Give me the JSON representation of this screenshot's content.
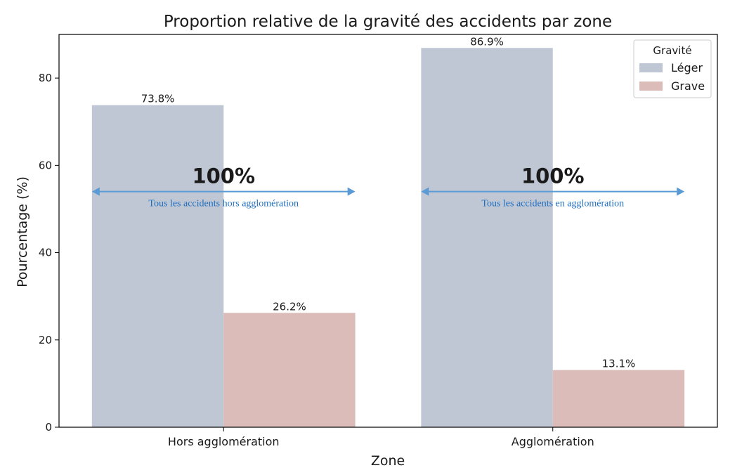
{
  "chart_data": {
    "type": "bar",
    "title": "Proportion relative de la gravité des accidents par zone",
    "xlabel": "Zone",
    "ylabel": "Pourcentage (%)",
    "categories": [
      "Hors agglomération",
      "Agglomération"
    ],
    "ylim": [
      0,
      90
    ],
    "yticks": [
      0,
      20,
      40,
      60,
      80
    ],
    "grid": false,
    "legend": {
      "title": "Gravité",
      "placement": "top-right"
    },
    "series": [
      {
        "name": "Léger",
        "values": [
          73.8,
          86.9
        ],
        "labels": [
          "73.8%",
          "86.9%"
        ],
        "color": "#bfc6d4"
      },
      {
        "name": "Grave",
        "values": [
          26.2,
          13.1
        ],
        "labels": [
          "26.2%",
          "13.1%"
        ],
        "color": "#dbbcb9"
      }
    ],
    "annotations": [
      {
        "big": "100%",
        "note": "Tous les accidents hors agglomération",
        "y": 54,
        "category": 0
      },
      {
        "big": "100%",
        "note": "Tous les accidents en agglomération",
        "y": 54,
        "category": 1
      }
    ],
    "annotation_color": "#5b9bd5",
    "annotation_text_color": "#1f6fbf"
  }
}
